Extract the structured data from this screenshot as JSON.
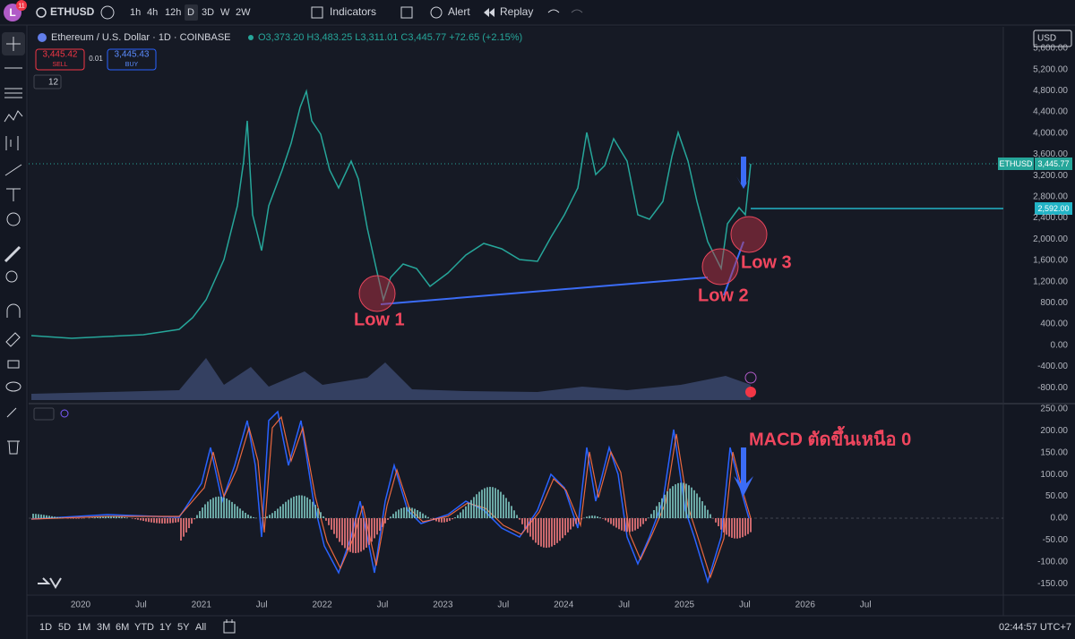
{
  "toolbar": {
    "avatar": "L",
    "badge": "11",
    "symbol": "ETHUSD",
    "intervals": [
      "1h",
      "4h",
      "12h",
      "D",
      "3D",
      "W",
      "2W"
    ],
    "indicators": "Indicators",
    "alert": "Alert",
    "replay": "Replay"
  },
  "legend": {
    "title": "Ethereum / U.S. Dollar · 1D · COINBASE",
    "ohlc": "O3,373.20 H3,483.25 L3,311.01 C3,445.77 +72.65 (+2.15%)",
    "sell_price": "3,445.42",
    "sell": "SELL",
    "spread": "0.01",
    "buy_price": "3,445.43",
    "buy": "BUY",
    "indicator_count": "12"
  },
  "currency": "USD",
  "price_axis": [
    "5,600.00",
    "5,200.00",
    "4,800.00",
    "4,400.00",
    "4,000.00",
    "3,600.00",
    "3,200.00",
    "2,800.00",
    "2,400.00",
    "2,000.00",
    "1,600.00",
    "1,200.00",
    "800.00",
    "400.00",
    "0.00",
    "-400.00",
    "-800.00"
  ],
  "price_tags": {
    "symbol": "ETHUSD",
    "last": "3,445.77",
    "level": "2,592.00"
  },
  "annotations": {
    "low1": "Low 1",
    "low2": "Low 2",
    "low3": "Low 3",
    "macd": "MACD ตัดขึ้นเหนือ 0"
  },
  "macd_axis": [
    "250.00",
    "200.00",
    "150.00",
    "100.00",
    "50.00",
    "0.00",
    "-50.00",
    "-100.00",
    "-150.00"
  ],
  "time_axis": [
    "2020",
    "Jul",
    "2021",
    "Jul",
    "2022",
    "Jul",
    "2023",
    "Jul",
    "2024",
    "Jul",
    "2025",
    "Jul",
    "2026",
    "Jul"
  ],
  "ranges": [
    "1D",
    "5D",
    "1M",
    "3M",
    "6M",
    "YTD",
    "1Y",
    "5Y",
    "All"
  ],
  "clock": "02:44:57 UTC+7"
}
